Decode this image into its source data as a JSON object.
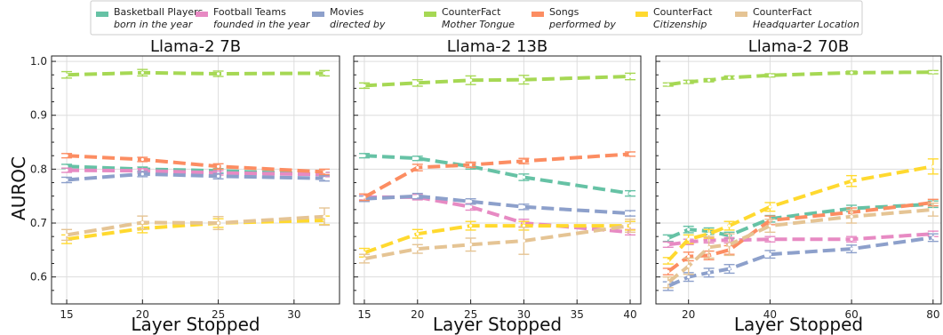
{
  "chart_data": {
    "type": "line",
    "ylabel": "AUROC",
    "xlabel": "Layer Stopped",
    "ylim": [
      0.55,
      1.01
    ],
    "yticks": [
      "0.6",
      "0.7",
      "0.8",
      "0.9",
      "1.0"
    ],
    "yticks_values": [
      0.6,
      0.7,
      0.8,
      0.9,
      1.0
    ],
    "grid": true,
    "legend_placement": "top",
    "series_styles": [
      {
        "line1": "Basketball Players",
        "line2": "born in the year",
        "color": "#66c2a5"
      },
      {
        "line1": "Football Teams",
        "line2": "founded in the year",
        "color": "#e78ac3"
      },
      {
        "line1": "Movies",
        "line2": "directed by",
        "color": "#8da0cb"
      },
      {
        "line1": "CounterFact",
        "line2": "Mother Tongue",
        "color": "#a6d854"
      },
      {
        "line1": "Songs",
        "line2": "performed by",
        "color": "#fc8d62"
      },
      {
        "line1": "CounterFact",
        "line2": "Citizenship",
        "color": "#ffd92f"
      },
      {
        "line1": "CounterFact",
        "line2": "Headquarter Location",
        "color": "#e5c494"
      }
    ],
    "panels": [
      {
        "title": "Llama-2 7B",
        "xlim": [
          14,
          33
        ],
        "xticks": [
          "15",
          "20",
          "25",
          "30"
        ],
        "xticks_values": [
          15,
          20,
          25,
          30
        ],
        "x": [
          15,
          20,
          25,
          32
        ],
        "series": [
          {
            "values": [
              0.805,
              0.8,
              0.797,
              0.79
            ],
            "err": [
              0.004,
              0.004,
              0.004,
              0.004
            ]
          },
          {
            "values": [
              0.798,
              0.797,
              0.793,
              0.79
            ],
            "err": [
              0.004,
              0.004,
              0.004,
              0.004
            ]
          },
          {
            "values": [
              0.78,
              0.791,
              0.787,
              0.783
            ],
            "err": [
              0.005,
              0.005,
              0.005,
              0.005
            ]
          },
          {
            "values": [
              0.975,
              0.979,
              0.977,
              0.978
            ],
            "err": [
              0.006,
              0.006,
              0.005,
              0.005
            ]
          },
          {
            "values": [
              0.825,
              0.818,
              0.805,
              0.795
            ],
            "err": [
              0.004,
              0.004,
              0.005,
              0.005
            ]
          },
          {
            "values": [
              0.67,
              0.69,
              0.7,
              0.705
            ],
            "err": [
              0.008,
              0.008,
              0.008,
              0.008
            ]
          },
          {
            "values": [
              0.678,
              0.701,
              0.7,
              0.712
            ],
            "err": [
              0.01,
              0.012,
              0.012,
              0.016
            ]
          }
        ]
      },
      {
        "title": "Llama-2 13B",
        "xlim": [
          14,
          41
        ],
        "xticks": [
          "15",
          "20",
          "25",
          "30",
          "35",
          "40"
        ],
        "xticks_values": [
          15,
          20,
          25,
          30,
          35,
          40
        ],
        "x": [
          15,
          20,
          25,
          30,
          40
        ],
        "series": [
          {
            "values": [
              0.825,
              0.82,
              0.805,
              0.785,
              0.755
            ],
            "err": [
              0.004,
              0.004,
              0.005,
              0.006,
              0.005
            ]
          },
          {
            "values": [
              0.748,
              0.748,
              0.73,
              0.7,
              0.683
            ],
            "err": [
              0.005,
              0.005,
              0.006,
              0.007,
              0.005
            ]
          },
          {
            "values": [
              0.745,
              0.75,
              0.74,
              0.73,
              0.718
            ],
            "err": [
              0.005,
              0.005,
              0.005,
              0.005,
              0.005
            ]
          },
          {
            "values": [
              0.955,
              0.96,
              0.965,
              0.966,
              0.972
            ],
            "err": [
              0.005,
              0.006,
              0.008,
              0.008,
              0.006
            ]
          },
          {
            "values": [
              0.748,
              0.803,
              0.808,
              0.815,
              0.828
            ],
            "err": [
              0.006,
              0.006,
              0.005,
              0.005,
              0.004
            ]
          },
          {
            "values": [
              0.645,
              0.68,
              0.695,
              0.695,
              0.695
            ],
            "err": [
              0.008,
              0.008,
              0.008,
              0.008,
              0.008
            ]
          },
          {
            "values": [
              0.634,
              0.652,
              0.66,
              0.667,
              0.695
            ],
            "err": [
              0.008,
              0.008,
              0.012,
              0.025,
              0.012
            ]
          }
        ]
      },
      {
        "title": "Llama-2 70B",
        "xlim": [
          12,
          82
        ],
        "xticks": [
          "20",
          "40",
          "60",
          "80"
        ],
        "xticks_values": [
          20,
          40,
          60,
          80
        ],
        "x": [
          15,
          20,
          25,
          30,
          40,
          60,
          80
        ],
        "series": [
          {
            "values": [
              0.672,
              0.688,
              0.685,
              0.677,
              0.708,
              0.727,
              0.735
            ],
            "err": [
              0.006,
              0.006,
              0.006,
              0.006,
              0.006,
              0.006,
              0.006
            ]
          },
          {
            "values": [
              0.66,
              0.665,
              0.668,
              0.668,
              0.67,
              0.67,
              0.68
            ],
            "err": [
              0.005,
              0.005,
              0.005,
              0.005,
              0.005,
              0.005,
              0.005
            ]
          },
          {
            "values": [
              0.583,
              0.6,
              0.608,
              0.615,
              0.642,
              0.652,
              0.673
            ],
            "err": [
              0.008,
              0.008,
              0.008,
              0.008,
              0.007,
              0.007,
              0.007
            ]
          },
          {
            "values": [
              0.957,
              0.962,
              0.965,
              0.97,
              0.974,
              0.979,
              0.98
            ],
            "err": [
              0.003,
              0.003,
              0.003,
              0.003,
              0.003,
              0.003,
              0.003
            ]
          },
          {
            "values": [
              0.61,
              0.638,
              0.64,
              0.65,
              0.705,
              0.72,
              0.738
            ],
            "err": [
              0.006,
              0.008,
              0.008,
              0.008,
              0.008,
              0.008,
              0.006
            ]
          },
          {
            "values": [
              0.63,
              0.67,
              0.68,
              0.695,
              0.73,
              0.778,
              0.805
            ],
            "err": [
              0.006,
              0.008,
              0.008,
              0.008,
              0.008,
              0.01,
              0.014
            ]
          },
          {
            "values": [
              0.59,
              0.62,
              0.655,
              0.66,
              0.695,
              0.712,
              0.725
            ],
            "err": [
              0.01,
              0.015,
              0.02,
              0.02,
              0.012,
              0.012,
              0.012
            ]
          }
        ]
      }
    ]
  }
}
